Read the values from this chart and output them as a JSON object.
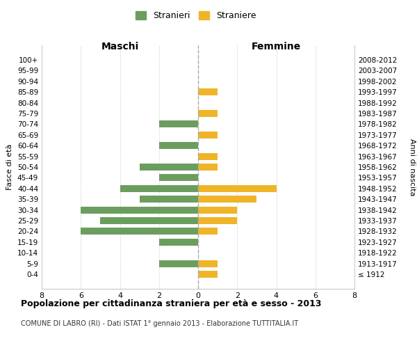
{
  "age_groups": [
    "100+",
    "95-99",
    "90-94",
    "85-89",
    "80-84",
    "75-79",
    "70-74",
    "65-69",
    "60-64",
    "55-59",
    "50-54",
    "45-49",
    "40-44",
    "35-39",
    "30-34",
    "25-29",
    "20-24",
    "15-19",
    "10-14",
    "5-9",
    "0-4"
  ],
  "birth_years": [
    "≤ 1912",
    "1913-1917",
    "1918-1922",
    "1923-1927",
    "1928-1932",
    "1933-1937",
    "1938-1942",
    "1943-1947",
    "1948-1952",
    "1953-1957",
    "1958-1962",
    "1963-1967",
    "1968-1972",
    "1973-1977",
    "1978-1982",
    "1983-1987",
    "1988-1992",
    "1993-1997",
    "1998-2002",
    "2003-2007",
    "2008-2012"
  ],
  "males": [
    0,
    0,
    0,
    0,
    0,
    0,
    2,
    0,
    2,
    0,
    3,
    2,
    4,
    3,
    6,
    5,
    6,
    2,
    0,
    2,
    0
  ],
  "females": [
    0,
    0,
    0,
    1,
    0,
    1,
    0,
    1,
    0,
    1,
    1,
    0,
    4,
    3,
    2,
    2,
    1,
    0,
    0,
    1,
    1
  ],
  "male_color": "#6b9e5e",
  "female_color": "#f0b429",
  "title": "Popolazione per cittadinanza straniera per età e sesso - 2013",
  "subtitle": "COMUNE DI LABRO (RI) - Dati ISTAT 1° gennaio 2013 - Elaborazione TUTTITALIA.IT",
  "legend_male": "Stranieri",
  "legend_female": "Straniere",
  "xlabel_left": "Maschi",
  "xlabel_right": "Femmine",
  "ylabel_left": "Fasce di età",
  "ylabel_right": "Anni di nascita",
  "xlim": 8,
  "background_color": "#ffffff",
  "grid_color": "#cccccc"
}
